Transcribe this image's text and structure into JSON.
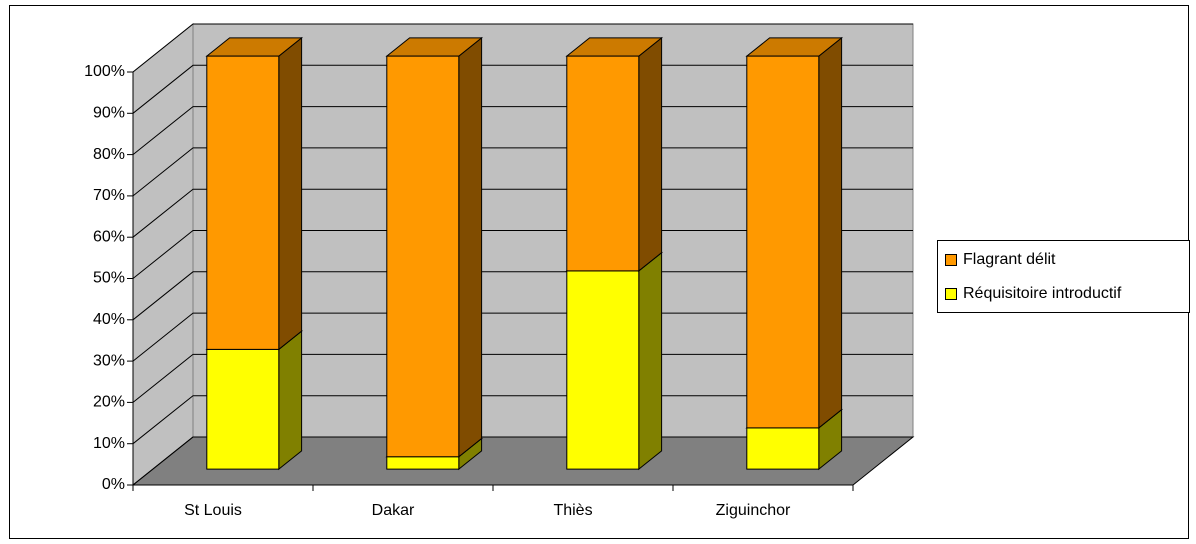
{
  "chart_data": {
    "type": "bar3d_stacked",
    "categories": [
      "St Louis",
      "Dakar",
      "Thiès",
      "Ziguinchor"
    ],
    "series": [
      {
        "name": "Réquisitoire introductif",
        "color": "#ffff00",
        "side_color": "#808000",
        "top_color": "#cccc00",
        "values": [
          29,
          3,
          48,
          10
        ]
      },
      {
        "name": "Flagrant délit",
        "color": "#ff9900",
        "side_color": "#804c00",
        "top_color": "#cc7a00",
        "values": [
          71,
          97,
          52,
          90
        ]
      }
    ],
    "ylim": [
      0,
      100
    ],
    "yticks": [
      {
        "value": 0,
        "label": "0%"
      },
      {
        "value": 10,
        "label": "10%"
      },
      {
        "value": 20,
        "label": "20%"
      },
      {
        "value": 30,
        "label": "30%"
      },
      {
        "value": 40,
        "label": "40%"
      },
      {
        "value": 50,
        "label": "50%"
      },
      {
        "value": 60,
        "label": "60%"
      },
      {
        "value": 70,
        "label": "70%"
      },
      {
        "value": 80,
        "label": "80%"
      },
      {
        "value": 90,
        "label": "90%"
      },
      {
        "value": 100,
        "label": "100%"
      }
    ],
    "grid": true,
    "legend": "right"
  }
}
